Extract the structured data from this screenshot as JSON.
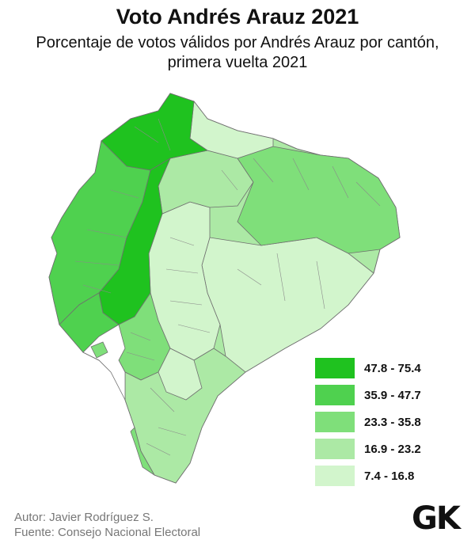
{
  "title": "Voto Andrés Arauz 2021",
  "subtitle": "Porcentaje de votos válidos por Andrés Arauz por cantón, primera vuelta 2021",
  "legend": [
    {
      "label": "47.8 - 75.4",
      "color": "#1fc21f"
    },
    {
      "label": "35.9 - 47.7",
      "color": "#4fd14f"
    },
    {
      "label": "23.3 - 35.8",
      "color": "#7fdf7a"
    },
    {
      "label": "16.9 - 23.2",
      "color": "#ace9a5"
    },
    {
      "label": "7.4 - 16.8",
      "color": "#d2f5cc"
    }
  ],
  "credits": {
    "author": "Autor: Javier Rodríguez S.",
    "source": "Fuente: Consejo Nacional Electoral"
  },
  "logo": "GK",
  "colors": {
    "border": "#6f6f6f",
    "water": "#ffffff"
  }
}
